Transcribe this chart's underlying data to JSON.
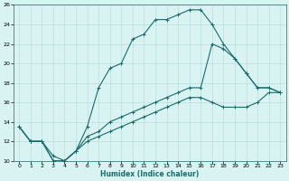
{
  "xlabel": "Humidex (Indice chaleur)",
  "bg_color": "#d9f2f2",
  "grid_color": "#b8dede",
  "line_color": "#1a6b6b",
  "xlim": [
    -0.5,
    23.5
  ],
  "ylim": [
    10,
    26
  ],
  "xticks": [
    0,
    1,
    2,
    3,
    4,
    5,
    6,
    7,
    8,
    9,
    10,
    11,
    12,
    13,
    14,
    15,
    16,
    17,
    18,
    19,
    20,
    21,
    22,
    23
  ],
  "yticks": [
    10,
    12,
    14,
    16,
    18,
    20,
    22,
    24,
    26
  ],
  "line1_x": [
    0,
    1,
    2,
    3,
    4,
    5,
    6,
    7,
    8,
    9,
    10,
    11,
    12,
    13,
    14,
    15,
    16,
    17,
    18,
    19,
    20,
    21,
    22,
    23
  ],
  "line1_y": [
    13.5,
    12.0,
    12.0,
    10.0,
    10.0,
    11.0,
    13.5,
    17.5,
    19.5,
    20.0,
    22.5,
    23.0,
    24.5,
    24.5,
    25.0,
    25.5,
    25.5,
    24.0,
    22.0,
    20.5,
    19.0,
    17.5,
    17.5,
    17.0
  ],
  "line2_x": [
    0,
    1,
    2,
    3,
    4,
    5,
    6,
    7,
    8,
    9,
    10,
    11,
    12,
    13,
    14,
    15,
    16,
    17,
    18,
    19,
    20,
    21,
    22,
    23
  ],
  "line2_y": [
    13.5,
    12.0,
    12.0,
    10.5,
    10.0,
    11.0,
    12.5,
    13.0,
    14.0,
    14.5,
    15.0,
    15.5,
    16.0,
    16.5,
    17.0,
    17.5,
    17.5,
    22.0,
    21.5,
    20.5,
    19.0,
    17.5,
    17.5,
    17.0
  ],
  "line3_x": [
    0,
    1,
    2,
    3,
    4,
    5,
    6,
    7,
    8,
    9,
    10,
    11,
    12,
    13,
    14,
    15,
    16,
    17,
    18,
    19,
    20,
    21,
    22,
    23
  ],
  "line3_y": [
    13.5,
    12.0,
    12.0,
    10.0,
    10.0,
    11.0,
    12.0,
    12.5,
    13.0,
    13.5,
    14.0,
    14.5,
    15.0,
    15.5,
    16.0,
    16.5,
    16.5,
    16.0,
    15.5,
    15.5,
    15.5,
    16.0,
    17.0,
    17.0
  ]
}
